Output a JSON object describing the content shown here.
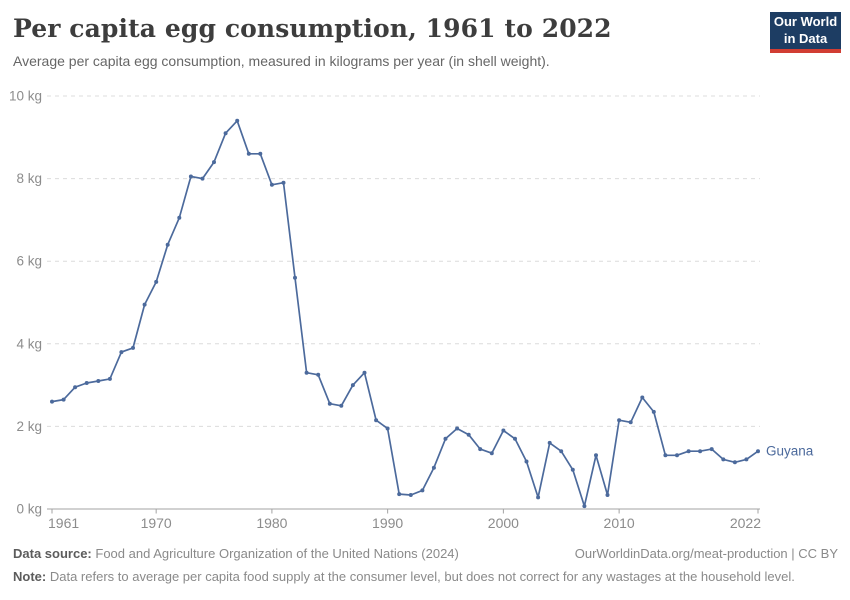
{
  "header": {
    "title": "Per capita egg consumption, 1961 to 2022",
    "subtitle": "Average per capita egg consumption, measured in kilograms per year (in shell weight)."
  },
  "logo": {
    "line1": "Our World",
    "line2": "in Data"
  },
  "chart_data": {
    "type": "line",
    "title": "Per capita egg consumption, 1961 to 2022",
    "xlabel": "",
    "ylabel": "",
    "unit": "kg",
    "xlim": [
      1961,
      2022
    ],
    "ylim": [
      0,
      10
    ],
    "yticks": [
      0,
      2,
      4,
      6,
      8,
      10
    ],
    "ytick_suffix": " kg",
    "xticks": [
      1961,
      1970,
      1980,
      1990,
      2000,
      2010,
      2022
    ],
    "grid": true,
    "legend_position": "end-of-line",
    "series": [
      {
        "name": "Guyana",
        "x": [
          1961,
          1962,
          1963,
          1964,
          1965,
          1966,
          1967,
          1968,
          1969,
          1970,
          1971,
          1972,
          1973,
          1974,
          1975,
          1976,
          1977,
          1978,
          1979,
          1980,
          1981,
          1982,
          1983,
          1984,
          1985,
          1986,
          1987,
          1988,
          1989,
          1990,
          1991,
          1992,
          1993,
          1994,
          1995,
          1996,
          1997,
          1998,
          1999,
          2000,
          2001,
          2002,
          2003,
          2004,
          2005,
          2006,
          2007,
          2008,
          2009,
          2010,
          2011,
          2012,
          2013,
          2014,
          2015,
          2016,
          2017,
          2018,
          2019,
          2020,
          2021,
          2022
        ],
        "values": [
          2.6,
          2.65,
          2.95,
          3.05,
          3.1,
          3.15,
          3.8,
          3.9,
          4.95,
          5.5,
          6.4,
          7.05,
          8.05,
          8.0,
          8.4,
          9.1,
          9.4,
          8.6,
          8.6,
          7.85,
          7.9,
          5.6,
          3.3,
          3.25,
          2.55,
          2.5,
          3.0,
          3.3,
          2.15,
          1.95,
          0.36,
          0.34,
          0.45,
          1.0,
          1.7,
          1.95,
          1.8,
          1.45,
          1.35,
          1.9,
          1.7,
          1.15,
          0.28,
          1.6,
          1.4,
          0.95,
          0.07,
          1.3,
          0.34,
          2.15,
          2.1,
          2.7,
          2.35,
          1.3,
          1.3,
          1.4,
          1.4,
          1.45,
          1.2,
          1.13,
          1.2,
          1.4
        ]
      }
    ]
  },
  "colors": {
    "line": "#4c6a9c",
    "grid": "#dcdcdc",
    "axis": "#a3a3a3",
    "tick_label": "#8c8c8c",
    "logo_bg": "#1d3d63",
    "logo_red": "#d13d33"
  },
  "footer": {
    "datasource_label": "Data source:",
    "datasource": "Food and Agriculture Organization of the United Nations (2024)",
    "link": "OurWorldinData.org/meat-production | CC BY",
    "note_label": "Note:",
    "note": "Data refers to average per capita food supply at the consumer level, but does not correct for any wastages at the household level."
  }
}
